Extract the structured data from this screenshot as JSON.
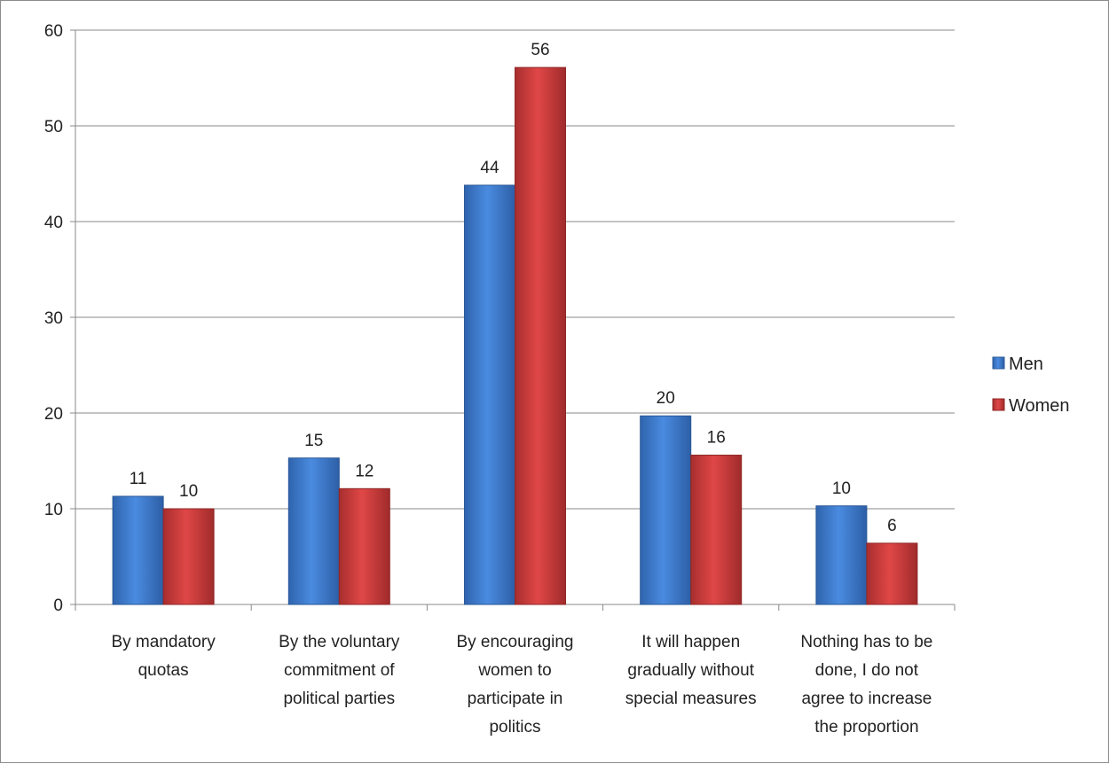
{
  "chart_data": {
    "type": "bar",
    "title": "",
    "xlabel": "",
    "ylabel": "",
    "ylim": [
      0,
      60
    ],
    "yticks": [
      0,
      10,
      20,
      30,
      40,
      50,
      60
    ],
    "grid": true,
    "legend_position": "right",
    "categories": [
      [
        "By mandatory",
        "quotas"
      ],
      [
        "By the voluntary",
        "commitment of",
        "political parties"
      ],
      [
        "By encouraging",
        "women to",
        "participate in",
        "politics"
      ],
      [
        "It will happen",
        "gradually without",
        "special measures"
      ],
      [
        "Nothing has to be",
        "done, I do not",
        "agree to increase",
        "the proportion"
      ]
    ],
    "series": [
      {
        "name": "Men",
        "color": "#3a78c9",
        "values": [
          11.3,
          15.3,
          43.8,
          19.7,
          10.3
        ],
        "labels": [
          "11",
          "15",
          "44",
          "20",
          "10"
        ]
      },
      {
        "name": "Women",
        "color": "#c93a3a",
        "values": [
          10.0,
          12.1,
          56.1,
          15.6,
          6.4
        ],
        "labels": [
          "10",
          "12",
          "56",
          "16",
          "6"
        ]
      }
    ]
  }
}
